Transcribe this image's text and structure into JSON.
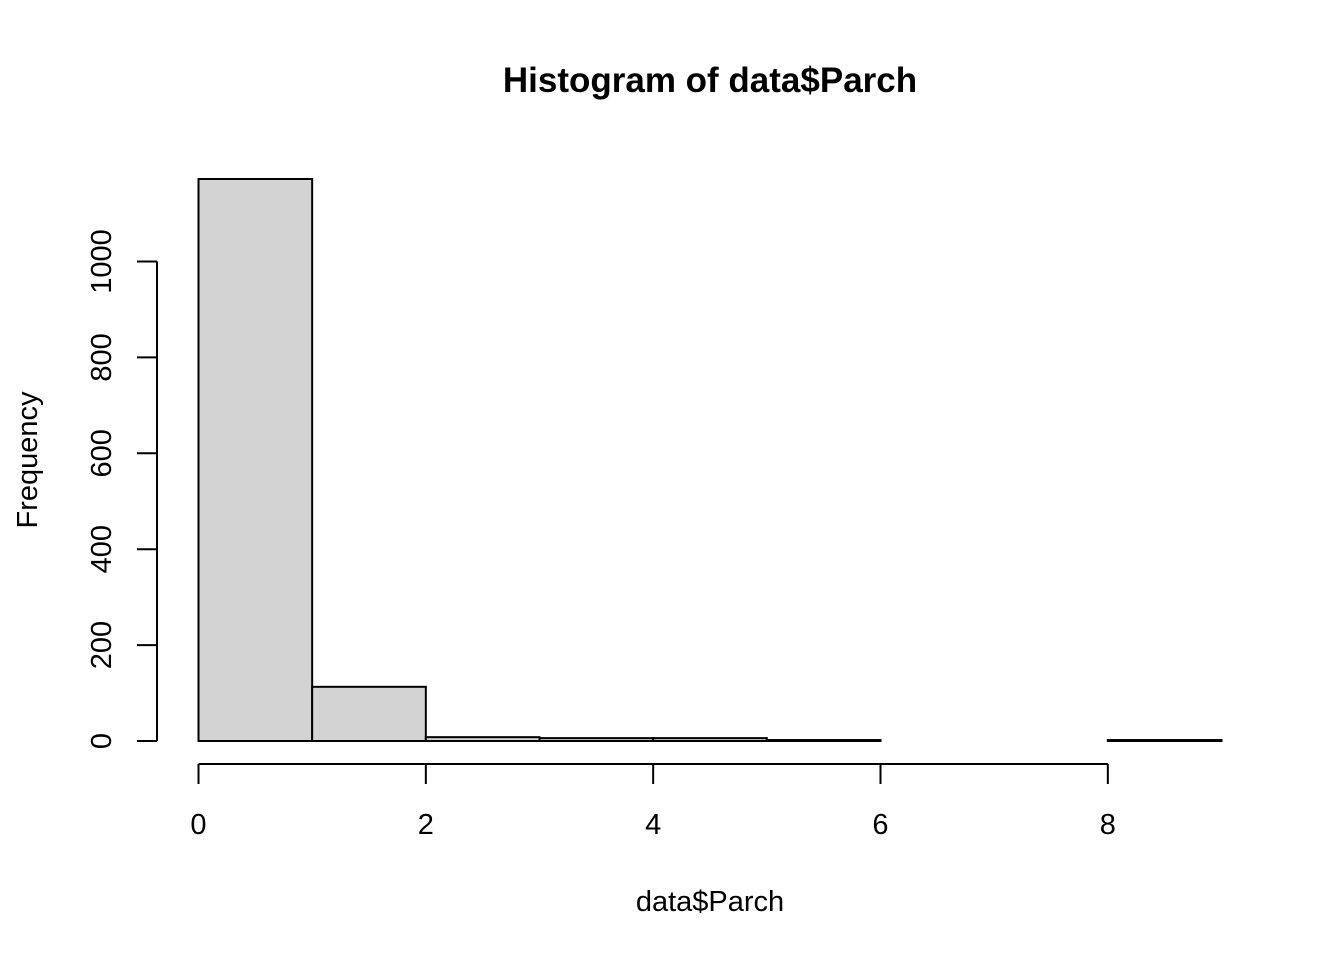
{
  "chart_data": {
    "type": "bar",
    "title": "Histogram of data$Parch",
    "xlabel": "data$Parch",
    "ylabel": "Frequency",
    "bins": [
      {
        "from": 0,
        "to": 1,
        "count": 1172
      },
      {
        "from": 1,
        "to": 2,
        "count": 113
      },
      {
        "from": 2,
        "to": 3,
        "count": 8
      },
      {
        "from": 3,
        "to": 4,
        "count": 6
      },
      {
        "from": 4,
        "to": 5,
        "count": 6
      },
      {
        "from": 5,
        "to": 6,
        "count": 2
      },
      {
        "from": 6,
        "to": 7,
        "count": 0
      },
      {
        "from": 7,
        "to": 8,
        "count": 0
      },
      {
        "from": 8,
        "to": 9,
        "count": 2
      }
    ],
    "xlim": [
      0,
      9
    ],
    "ylim": [
      0,
      1172
    ],
    "x_ticks": [
      "0",
      "2",
      "4",
      "6",
      "8"
    ],
    "y_ticks": [
      "0",
      "200",
      "400",
      "600",
      "800",
      "1000"
    ],
    "grid": false,
    "colors": {
      "bar_fill": "#d3d3d3",
      "bar_stroke": "#000000",
      "axis": "#000000"
    }
  }
}
